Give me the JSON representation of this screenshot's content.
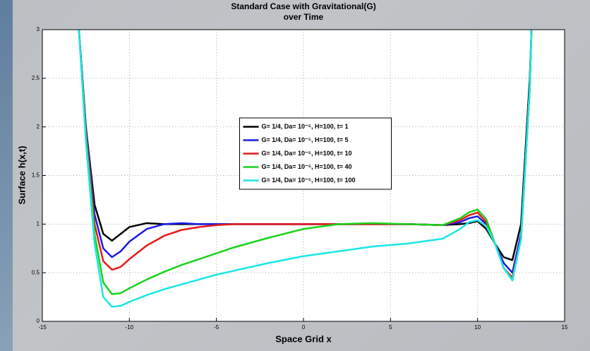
{
  "chart_data": {
    "type": "line",
    "title": [
      "Standard Case with Gravitational(G)",
      "over Time"
    ],
    "x_label": "Space Grid x",
    "y_label": "Surface h(x,t)",
    "x": [
      -12.9,
      -12.5,
      -12,
      -11.5,
      -11,
      -10.5,
      -10,
      -9,
      -8,
      -7,
      -6,
      -5,
      -4,
      -2,
      0,
      2,
      4,
      6,
      8,
      9,
      9.5,
      10,
      10.5,
      11,
      11.5,
      12,
      12.5,
      13,
      13.1
    ],
    "series": [
      {
        "name": "G= 1/4, Da= 10⁻⁵, H=100, t= 1",
        "color": "#000000",
        "values": [
          3,
          2.0,
          1.2,
          0.9,
          0.83,
          0.9,
          0.97,
          1.01,
          1.0,
          1.0,
          1.0,
          1.0,
          1.0,
          1.0,
          1.0,
          1.0,
          1.0,
          1.0,
          0.99,
          1.0,
          1.01,
          1.03,
          0.95,
          0.8,
          0.66,
          0.63,
          1.0,
          2.5,
          3
        ]
      },
      {
        "name": "G= 1/4, Da= 10⁻⁵, H=100, t= 5",
        "color": "#1a1ae6",
        "values": [
          3,
          2.0,
          1.1,
          0.75,
          0.66,
          0.72,
          0.82,
          0.95,
          1.0,
          1.01,
          1.0,
          1.0,
          1.0,
          1.0,
          1.0,
          1.0,
          1.0,
          1.0,
          0.99,
          1.02,
          1.06,
          1.08,
          1.0,
          0.8,
          0.6,
          0.5,
          0.9,
          2.4,
          3
        ]
      },
      {
        "name": "G= 1/4, Da= 10⁻⁵, H=100, t= 10",
        "color": "#e61a1a",
        "values": [
          3,
          1.95,
          1.0,
          0.62,
          0.53,
          0.56,
          0.64,
          0.78,
          0.88,
          0.94,
          0.97,
          0.99,
          1.0,
          1.0,
          1.0,
          1.0,
          1.0,
          1.0,
          0.99,
          1.04,
          1.09,
          1.12,
          1.02,
          0.8,
          0.55,
          0.45,
          0.85,
          2.4,
          3
        ]
      },
      {
        "name": "G= 1/4, Da= 10⁻⁵, H=100, t= 40",
        "color": "#1ad21a",
        "values": [
          3,
          1.9,
          0.9,
          0.4,
          0.28,
          0.29,
          0.34,
          0.43,
          0.51,
          0.58,
          0.64,
          0.7,
          0.76,
          0.86,
          0.95,
          1.0,
          1.01,
          1.0,
          0.99,
          1.06,
          1.12,
          1.15,
          1.05,
          0.8,
          0.55,
          0.43,
          0.85,
          2.4,
          3
        ]
      },
      {
        "name": "G= 1/4, Da= 10⁻⁵, H=100, t= 100",
        "color": "#1ae6e6",
        "values": [
          3,
          1.85,
          0.8,
          0.25,
          0.15,
          0.16,
          0.2,
          0.27,
          0.33,
          0.38,
          0.43,
          0.48,
          0.52,
          0.6,
          0.67,
          0.72,
          0.77,
          0.8,
          0.85,
          0.95,
          1.02,
          1.04,
          0.98,
          0.8,
          0.55,
          0.42,
          0.85,
          2.4,
          3
        ]
      }
    ],
    "xlim": [
      -15,
      15
    ],
    "xticks": [
      -15,
      -10,
      -5,
      0,
      5,
      10,
      15
    ],
    "ylim": [
      0,
      3
    ],
    "yticks": [
      0,
      0.5,
      1,
      1.5,
      2,
      2.5,
      3
    ],
    "grid": true,
    "legend_position": "center"
  }
}
